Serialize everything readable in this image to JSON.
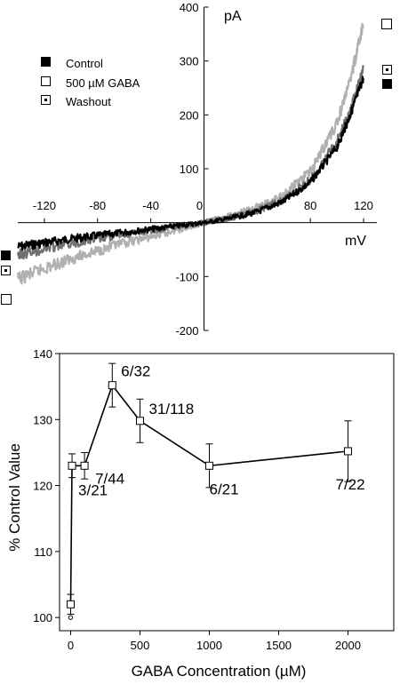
{
  "chart_data": [
    {
      "type": "line",
      "y_unit": "pA",
      "x_unit": "mV",
      "xlim": [
        -140,
        130
      ],
      "ylim": [
        -200,
        400
      ],
      "xticks": [
        -120,
        -80,
        -40,
        0,
        80,
        120
      ],
      "yticks": [
        -200,
        -100,
        0,
        100,
        200,
        300,
        400
      ],
      "xtick_labels": [
        "-120",
        "-80",
        "-40",
        "0",
        "80",
        "120"
      ],
      "ytick_labels": [
        "-200",
        "-100",
        "0",
        "100",
        "200",
        "300",
        "400"
      ],
      "legend_position": "top-left",
      "series": [
        {
          "name": "Control",
          "marker": "filled-square",
          "color": "#000000",
          "x": [
            -140,
            -120,
            -100,
            -80,
            -60,
            -40,
            -20,
            0,
            20,
            40,
            60,
            80,
            100,
            110,
            120
          ],
          "y": [
            -45,
            -37,
            -30,
            -24,
            -18,
            -12,
            -6,
            0,
            8,
            20,
            40,
            75,
            140,
            200,
            270
          ]
        },
        {
          "name": "500 µM GABA",
          "marker": "open-square",
          "color": "#b0b0b0",
          "x": [
            -140,
            -120,
            -100,
            -80,
            -60,
            -40,
            -20,
            0,
            20,
            40,
            60,
            80,
            100,
            110,
            120
          ],
          "y": [
            -105,
            -85,
            -67,
            -52,
            -38,
            -26,
            -13,
            0,
            12,
            28,
            52,
            95,
            185,
            265,
            370
          ]
        },
        {
          "name": "Washout",
          "marker": "dotted-square",
          "color": "#707070",
          "x": [
            -140,
            -120,
            -100,
            -80,
            -60,
            -40,
            -20,
            0,
            20,
            40,
            60,
            80,
            100,
            110,
            120
          ],
          "y": [
            -60,
            -48,
            -38,
            -30,
            -22,
            -15,
            -7,
            0,
            9,
            22,
            43,
            80,
            150,
            210,
            285
          ]
        }
      ]
    },
    {
      "type": "line",
      "xlabel": "GABA Concentration (µM)",
      "ylabel": "% Control Value",
      "xlim": [
        -80,
        2330
      ],
      "ylim": [
        98,
        140
      ],
      "xticks": [
        0,
        500,
        1000,
        1500,
        2000
      ],
      "yticks": [
        100,
        110,
        120,
        130,
        140
      ],
      "xtick_labels": [
        "0",
        "500",
        "1000",
        "1500",
        "2000"
      ],
      "ytick_labels": [
        "100",
        "110",
        "120",
        "130",
        "140"
      ],
      "series": [
        {
          "x": [
            0,
            10,
            100,
            300,
            500,
            1000,
            2000
          ],
          "y": [
            102,
            123,
            123,
            135.2,
            129.8,
            123,
            125.2
          ],
          "err": [
            1.5,
            1.8,
            2,
            3.3,
            3.3,
            3.3,
            4.6
          ],
          "labels": [
            "",
            "3/21",
            "7/44",
            "6/32",
            "31/118",
            "6/21",
            "7/22"
          ]
        }
      ],
      "baseline_point": {
        "x": 0,
        "y": 100
      }
    }
  ]
}
